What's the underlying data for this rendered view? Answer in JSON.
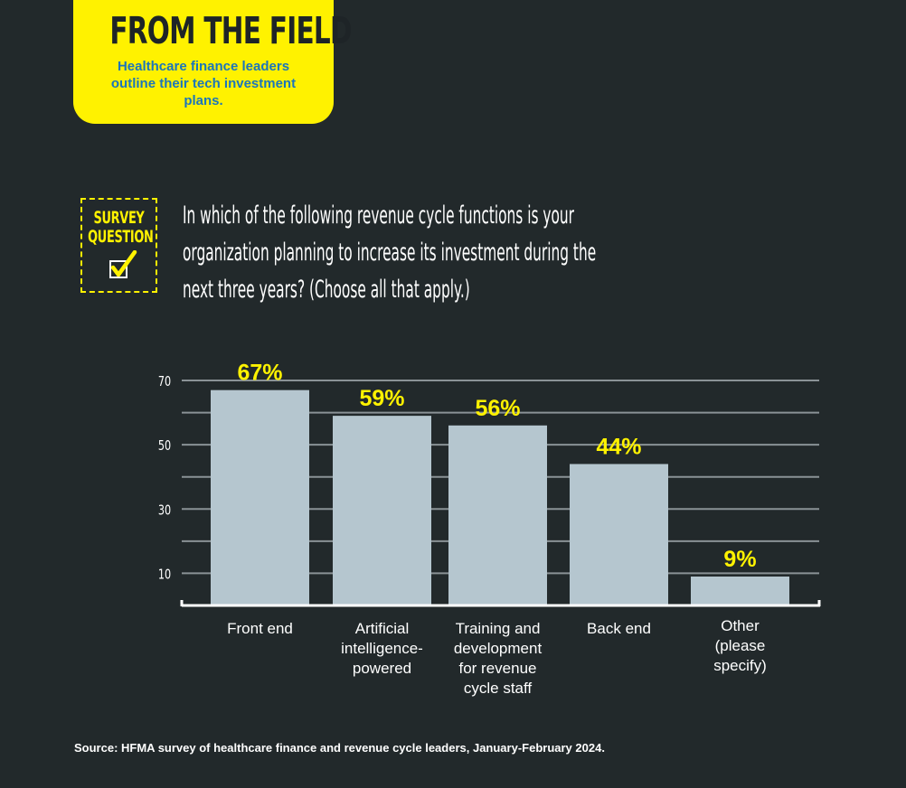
{
  "header": {
    "title": "FROM THE FIELD",
    "subtitle": "Healthcare finance leaders outline their tech investment plans."
  },
  "badge": {
    "line1": "SURVEY",
    "line2": "QUESTION"
  },
  "question": {
    "line1": "In which of the following revenue cycle functions is your",
    "line2": "organization planning to increase its investment during the",
    "line3": "next three years? (Choose all that apply.)"
  },
  "colors": {
    "background": "#22292b",
    "accent_yellow": "#fff200",
    "bar": "#b5c6cf",
    "grid": "#8a9296",
    "subtitle_blue": "#1b75bb"
  },
  "chart_data": {
    "type": "bar",
    "categories": [
      [
        "Front end"
      ],
      [
        "Artificial",
        "intelligence-",
        "powered"
      ],
      [
        "Training and",
        "development",
        "for revenue",
        "cycle staff"
      ],
      [
        "Back end"
      ],
      [
        "Other",
        "(please",
        "specify)"
      ]
    ],
    "values": [
      67,
      59,
      56,
      44,
      9
    ],
    "value_labels": [
      "67%",
      "59%",
      "56%",
      "44%",
      "9%"
    ],
    "yticks": [
      10,
      30,
      50,
      70
    ],
    "ylim": [
      0,
      70
    ],
    "grid": true
  },
  "source": "Source: HFMA survey of healthcare finance and revenue cycle leaders, January-February 2024."
}
